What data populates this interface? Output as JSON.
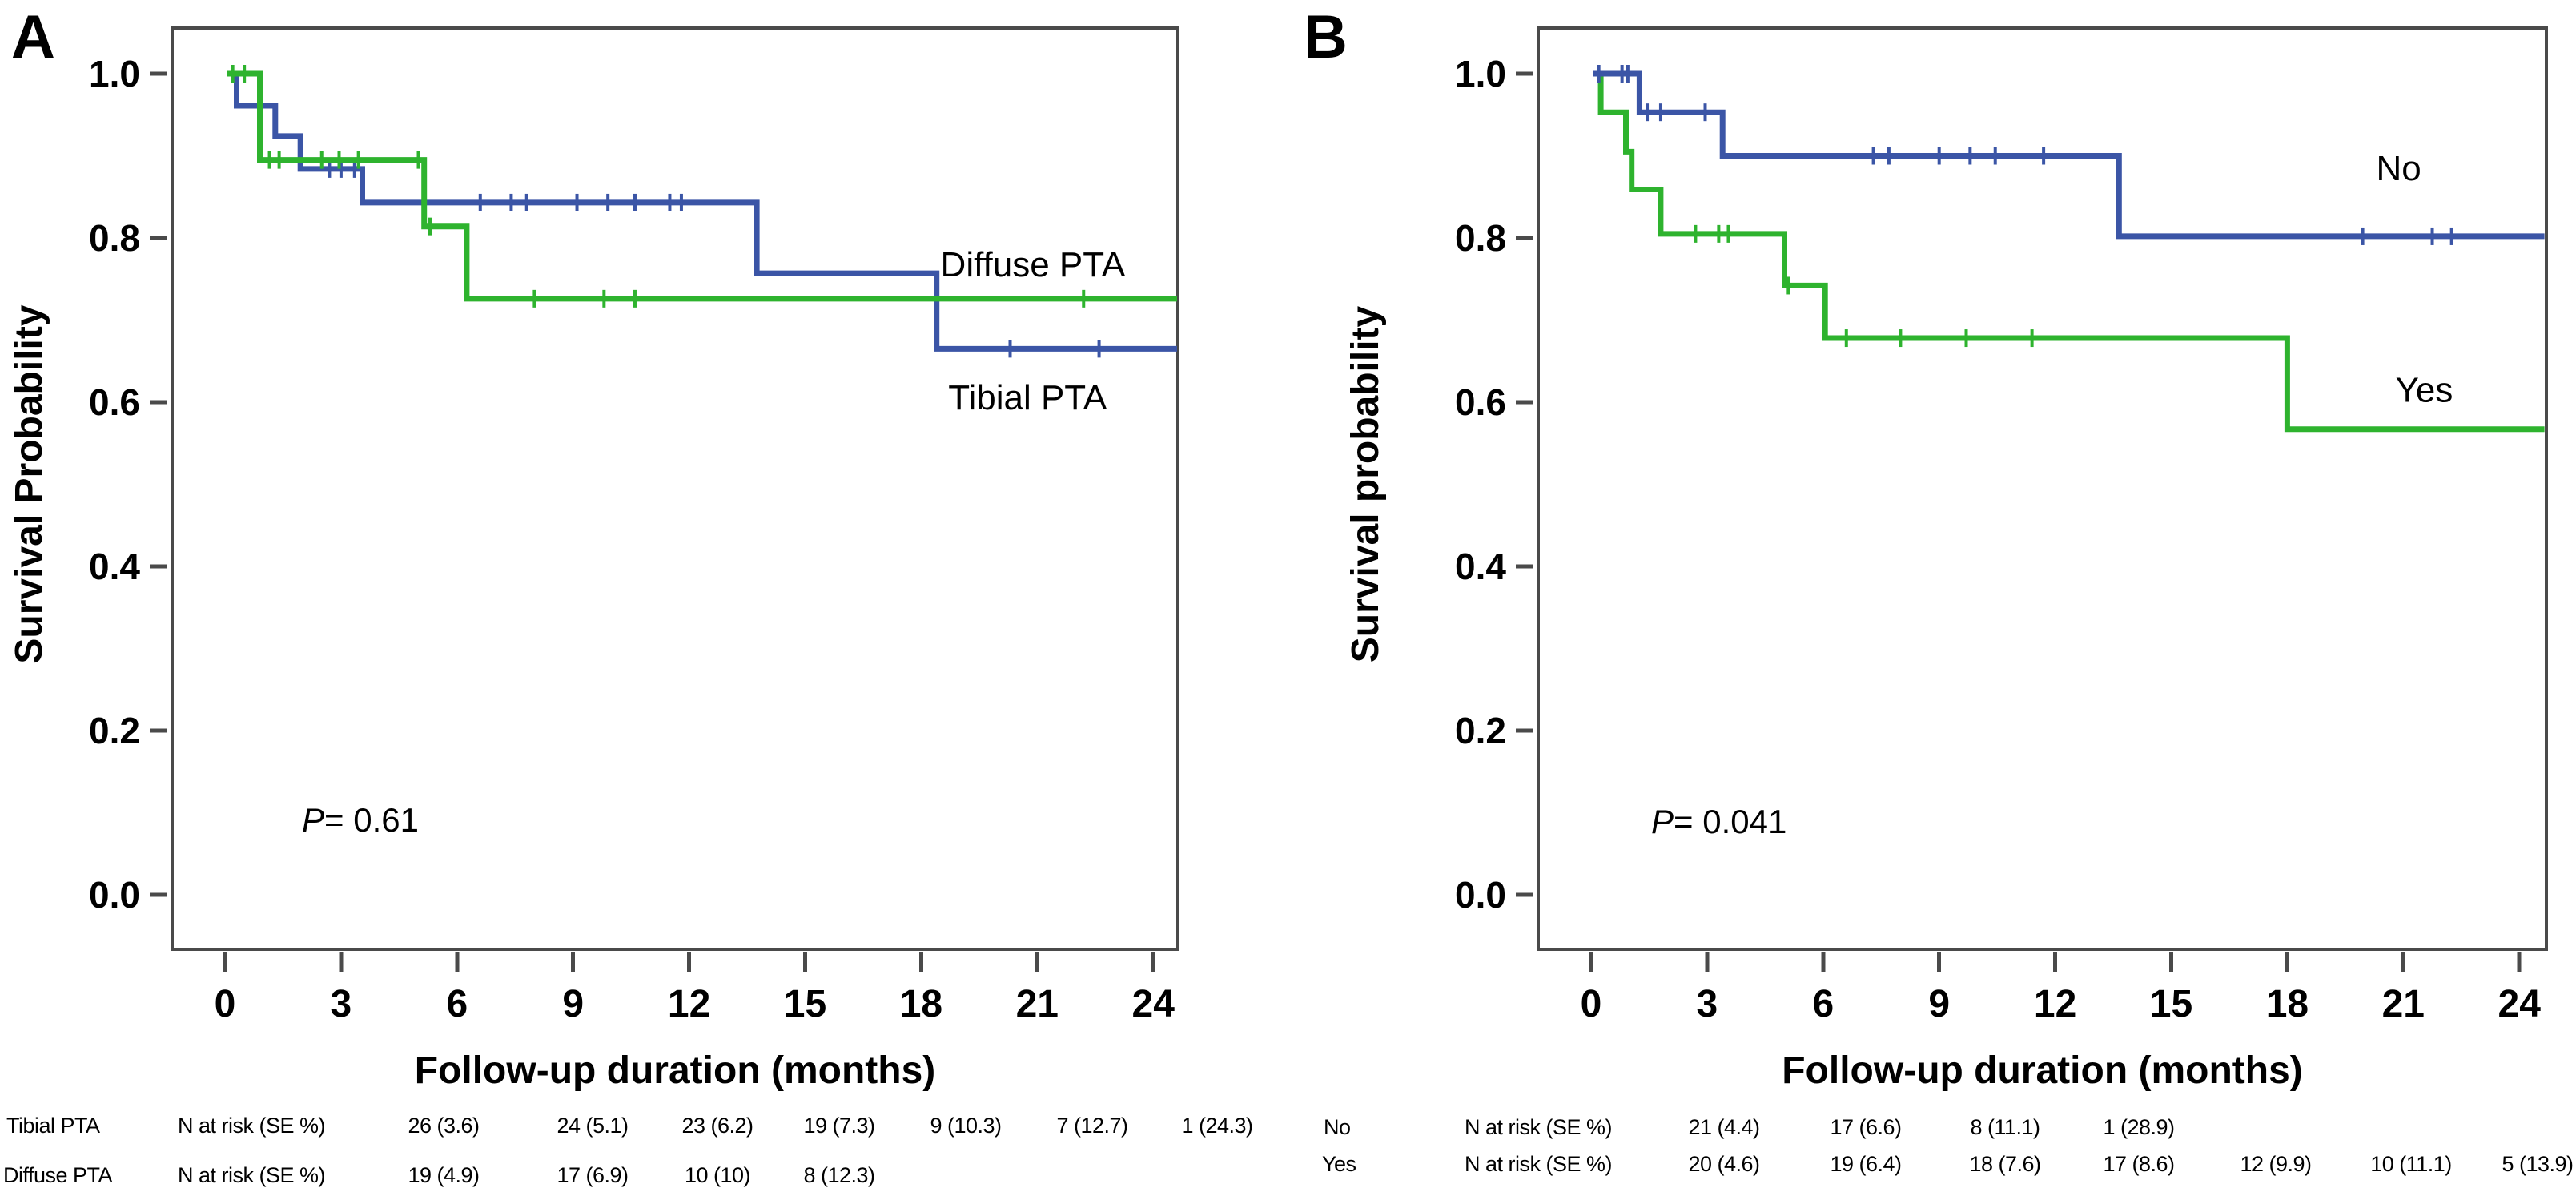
{
  "figure_colors": {
    "blue": "#3B55A6",
    "green": "#2EB32E",
    "frame": "#4A4A4A",
    "text": "#000000"
  },
  "chart_data": [
    {
      "type": "line",
      "subtype": "kaplan-meier-step",
      "panel_label": "A",
      "xlabel": "Follow-up duration (months)",
      "ylabel": "Survival Probability",
      "p_value_prefix": "P",
      "p_value_rest": "= 0.61",
      "x_ticks": [
        0,
        3,
        6,
        9,
        12,
        15,
        18,
        21,
        24
      ],
      "y_ticks": [
        "1.0",
        "0.8",
        "0.6",
        "0.4",
        "0.2",
        "0.0"
      ],
      "xlim": [
        -1.37,
        24.65
      ],
      "ylim": [
        -0.066,
        1.056
      ],
      "grid": false,
      "legend_position": "labels-on-plot",
      "x_end": 24.65,
      "series": [
        {
          "name": "Diffuse PTA",
          "color": "#3B55A6",
          "steps": [
            [
              0.1,
              1.0
            ],
            [
              0.3,
              0.961
            ],
            [
              1.3,
              0.924
            ],
            [
              1.95,
              0.884
            ],
            [
              3.55,
              0.843
            ],
            [
              13.75,
              0.757
            ],
            [
              18.4,
              0.665
            ]
          ],
          "censors": [
            [
              2.7,
              0.884
            ],
            [
              3.0,
              0.884
            ],
            [
              3.35,
              0.884
            ],
            [
              6.6,
              0.843
            ],
            [
              7.4,
              0.843
            ],
            [
              7.8,
              0.843
            ],
            [
              9.1,
              0.843
            ],
            [
              9.9,
              0.843
            ],
            [
              10.6,
              0.843
            ],
            [
              11.5,
              0.843
            ],
            [
              11.8,
              0.843
            ],
            [
              20.3,
              0.665
            ],
            [
              22.6,
              0.665
            ]
          ]
        },
        {
          "name": "Tibial PTA",
          "color": "#2EB32E",
          "steps": [
            [
              0.05,
              1.0
            ],
            [
              0.9,
              0.895
            ],
            [
              5.15,
              0.814
            ],
            [
              6.25,
              0.726
            ]
          ],
          "censors": [
            [
              0.2,
              1.0
            ],
            [
              0.5,
              1.0
            ],
            [
              1.15,
              0.895
            ],
            [
              1.4,
              0.895
            ],
            [
              2.5,
              0.895
            ],
            [
              2.95,
              0.895
            ],
            [
              3.45,
              0.895
            ],
            [
              5.0,
              0.895
            ],
            [
              5.3,
              0.814
            ],
            [
              8.0,
              0.726
            ],
            [
              9.8,
              0.726
            ],
            [
              10.6,
              0.726
            ],
            [
              22.2,
              0.726
            ]
          ]
        }
      ],
      "labels_on_plot": [
        {
          "text": "Diffuse PTA",
          "x": 18.5,
          "y": 0.768
        },
        {
          "text": "Tibial PTA",
          "x": 18.7,
          "y": 0.606
        }
      ],
      "at_risk_table": {
        "rows": [
          {
            "label": "Tibial PTA",
            "header": "N at risk (SE %)",
            "values": [
              "26 (3.6)",
              "24 (5.1)",
              "23 (6.2)",
              "19 (7.3)",
              "9 (10.3)",
              "7 (12.7)",
              "1 (24.3)"
            ]
          },
          {
            "label": "Diffuse PTA",
            "header": "N at risk (SE %)",
            "values": [
              "19 (4.9)",
              "17 (6.9)",
              "10 (10)",
              "8 (12.3)"
            ]
          }
        ]
      }
    },
    {
      "type": "line",
      "subtype": "kaplan-meier-step",
      "panel_label": "B",
      "xlabel": "Follow-up duration (months)",
      "ylabel": "Survival probability",
      "p_value_prefix": "P",
      "p_value_rest": "= 0.041",
      "x_ticks": [
        0,
        3,
        6,
        9,
        12,
        15,
        18,
        21,
        24
      ],
      "y_ticks": [
        "1.0",
        "0.8",
        "0.6",
        "0.4",
        "0.2",
        "0.0"
      ],
      "xlim": [
        -1.37,
        24.65
      ],
      "ylim": [
        -0.066,
        1.056
      ],
      "grid": false,
      "legend_position": "labels-on-plot",
      "x_end": 24.65,
      "series": [
        {
          "name": "Yes",
          "color": "#2EB32E",
          "steps": [
            [
              0.05,
              1.0
            ],
            [
              0.25,
              0.953
            ],
            [
              0.9,
              0.905
            ],
            [
              1.05,
              0.859
            ],
            [
              1.8,
              0.805
            ],
            [
              5.0,
              0.742
            ],
            [
              6.05,
              0.678
            ],
            [
              18.0,
              0.567
            ]
          ],
          "censors": [
            [
              2.7,
              0.805
            ],
            [
              3.3,
              0.805
            ],
            [
              3.55,
              0.805
            ],
            [
              5.1,
              0.742
            ],
            [
              6.6,
              0.678
            ],
            [
              8.0,
              0.678
            ],
            [
              9.7,
              0.678
            ],
            [
              11.4,
              0.678
            ]
          ]
        },
        {
          "name": "No",
          "color": "#3B55A6",
          "steps": [
            [
              0.05,
              1.0
            ],
            [
              1.25,
              0.953
            ],
            [
              3.4,
              0.9
            ],
            [
              13.65,
              0.802
            ]
          ],
          "censors": [
            [
              0.2,
              1.0
            ],
            [
              0.8,
              1.0
            ],
            [
              0.95,
              1.0
            ],
            [
              1.45,
              0.953
            ],
            [
              1.8,
              0.953
            ],
            [
              2.95,
              0.953
            ],
            [
              7.3,
              0.9
            ],
            [
              7.7,
              0.9
            ],
            [
              9.0,
              0.9
            ],
            [
              9.8,
              0.9
            ],
            [
              10.45,
              0.9
            ],
            [
              11.7,
              0.9
            ],
            [
              19.95,
              0.802
            ],
            [
              21.75,
              0.802
            ],
            [
              22.25,
              0.802
            ]
          ]
        }
      ],
      "labels_on_plot": [
        {
          "text": "No",
          "x": 20.3,
          "y": 0.885
        },
        {
          "text": "Yes",
          "x": 20.8,
          "y": 0.615
        }
      ],
      "at_risk_table": {
        "rows": [
          {
            "label": "No",
            "header": "N at risk (SE %)",
            "values": [
              "21 (4.4)",
              "17 (6.6)",
              "8 (11.1)",
              "1 (28.9)"
            ]
          },
          {
            "label": "Yes",
            "header": "N at risk (SE %)",
            "values": [
              "20 (4.6)",
              "19 (6.4)",
              "18 (7.6)",
              "17 (8.6)",
              "12 (9.9)",
              "10 (11.1)",
              "5 (13.9)"
            ]
          }
        ]
      }
    }
  ]
}
